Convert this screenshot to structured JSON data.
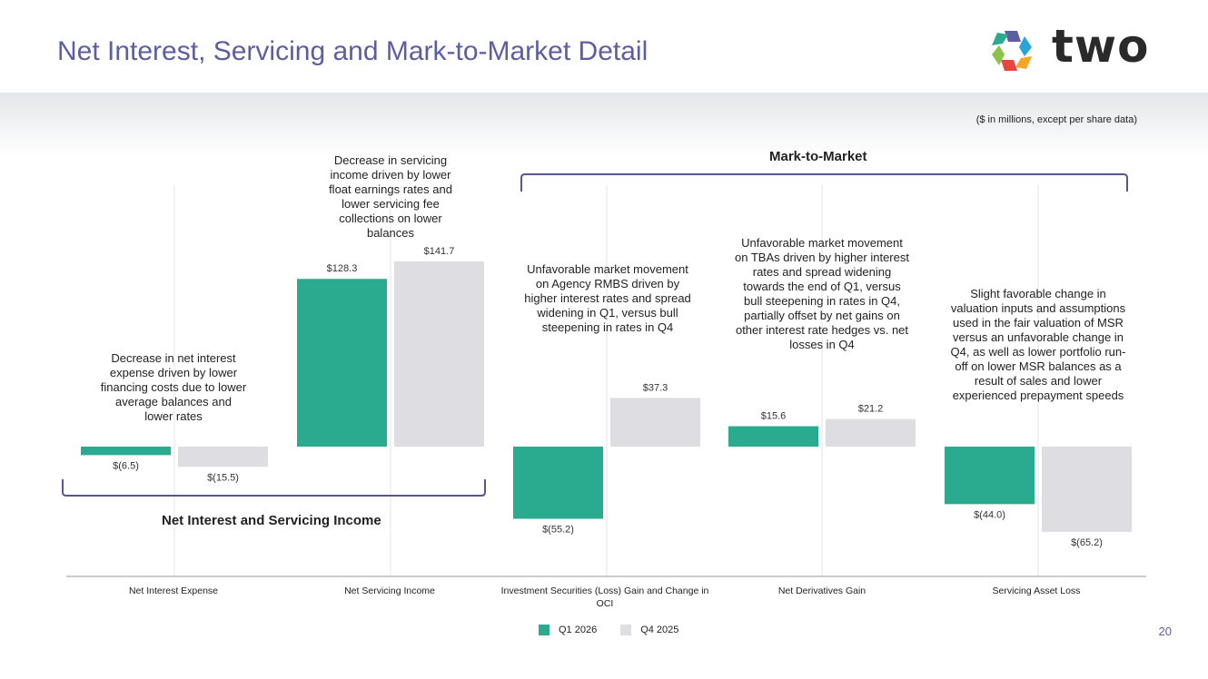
{
  "page": {
    "title": "Net Interest, Servicing and Mark-to-Market Detail",
    "logo_text": "two",
    "units_note": "($ in millions, except per share data)",
    "page_number": "20"
  },
  "colors": {
    "q1": "#2aab8f",
    "q4": "#dedde2",
    "title": "#5b5ea0",
    "bracket": "#55578f"
  },
  "groups": {
    "net_interest_servicing": "Net Interest and Servicing Income",
    "mark_to_market": "Mark-to-Market"
  },
  "annotations": [
    "Decrease in net interest expense driven by lower financing costs due to lower average balances and lower rates",
    "Decrease in servicing income driven by lower float earnings rates and lower servicing fee collections on lower balances",
    "Unfavorable market movement on Agency RMBS driven by higher interest rates and spread widening in Q1, versus bull steepening in rates in Q4",
    "Unfavorable market movement on TBAs driven by higher interest rates and spread widening towards the end of Q1, versus bull steepening in rates in Q4, partially offset by net gains on other interest rate hedges vs. net losses in Q4",
    "Slight favorable change in valuation inputs and assumptions used in the fair valuation of MSR versus an unfavorable change in Q4, as well as lower portfolio run-off on lower MSR balances as a result of sales and lower experienced prepayment speeds"
  ],
  "chart_data": {
    "type": "bar",
    "categories": [
      "Net Interest Expense",
      "Net Servicing Income",
      "Investment Securities (Loss) Gain and Change in OCI",
      "Net Derivatives Gain",
      "Servicing Asset Loss"
    ],
    "series": [
      {
        "name": "Q1 2026",
        "values": [
          -6.5,
          128.3,
          -55.2,
          15.6,
          -44.0
        ],
        "labels": [
          "$(6.5)",
          "$128.3",
          "$(55.2)",
          "$15.6",
          "$(44.0)"
        ]
      },
      {
        "name": "Q4 2025",
        "values": [
          -15.5,
          141.7,
          37.3,
          21.2,
          -65.2
        ],
        "labels": [
          "$(15.5)",
          "$141.7",
          "$37.3",
          "$21.2",
          "$(65.2)"
        ]
      }
    ],
    "legend_position": "bottom-center"
  }
}
